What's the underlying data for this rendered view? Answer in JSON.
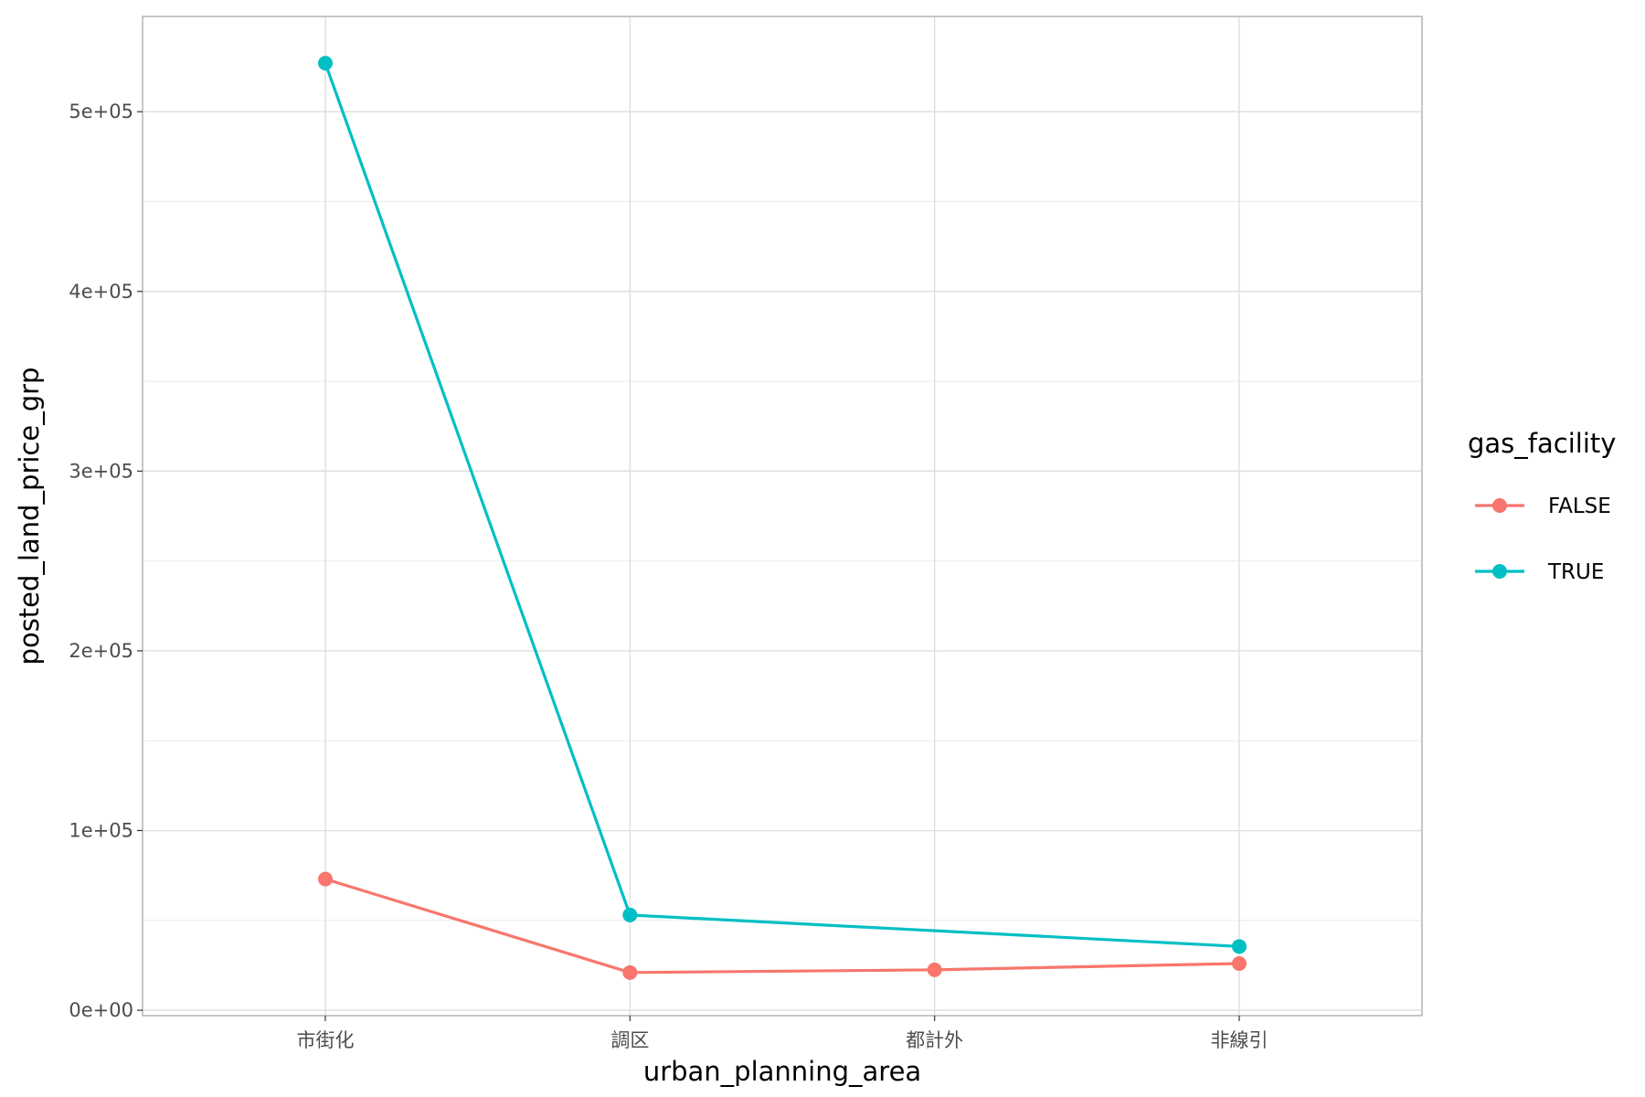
{
  "chart_data": {
    "type": "line",
    "title": "",
    "xlabel": "urban_planning_area",
    "ylabel": "posted_land_price_grp",
    "categories": [
      "市街化",
      "調区",
      "都計外",
      "非線引"
    ],
    "ylim": [
      -3000,
      553000
    ],
    "y_ticks": [
      0,
      100000,
      200000,
      300000,
      400000,
      500000
    ],
    "y_tick_labels": [
      "0e+00",
      "1e+05",
      "2e+05",
      "3e+05",
      "4e+05",
      "5e+05"
    ],
    "grid": true,
    "legend": {
      "title": "gas_facility",
      "position": "right"
    },
    "series": [
      {
        "name": "FALSE",
        "color": "#F8766D",
        "values": [
          73000,
          21000,
          22500,
          26000
        ]
      },
      {
        "name": "TRUE",
        "color": "#00BFC4",
        "values": [
          527000,
          53000,
          null,
          35500
        ]
      }
    ]
  }
}
